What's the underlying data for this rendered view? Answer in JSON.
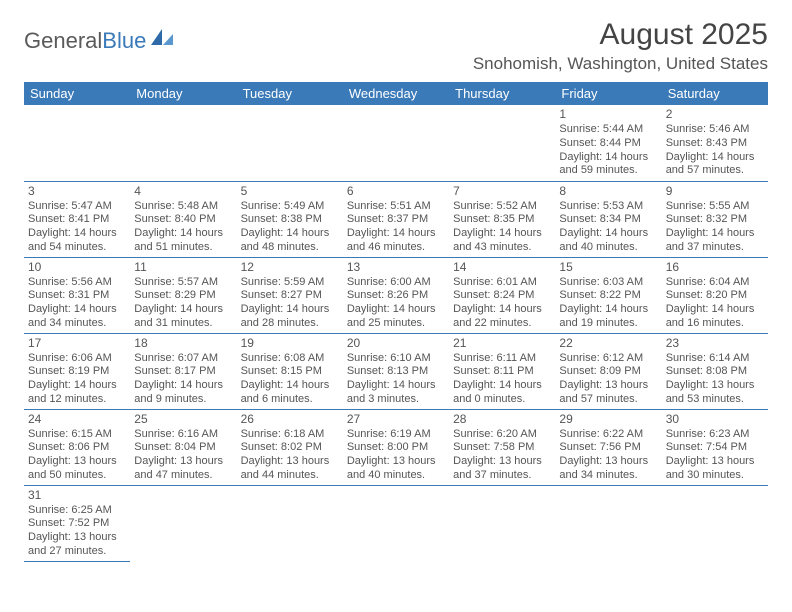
{
  "logo": {
    "word1": "General",
    "word2": "Blue"
  },
  "colors": {
    "brand": "#3a7ab8",
    "text": "#555555",
    "bg": "#ffffff"
  },
  "title": "August 2025",
  "location": "Snohomish, Washington, United States",
  "weekdays": [
    "Sunday",
    "Monday",
    "Tuesday",
    "Wednesday",
    "Thursday",
    "Friday",
    "Saturday"
  ],
  "typography": {
    "title_fontsize": 30,
    "location_fontsize": 17,
    "header_fontsize": 13,
    "cell_fontsize": 11
  },
  "layout": {
    "first_day_index": 5,
    "rows": 6,
    "cols": 7
  },
  "days": [
    {
      "n": "1",
      "sr": "Sunrise: 5:44 AM",
      "ss": "Sunset: 8:44 PM",
      "d1": "Daylight: 14 hours",
      "d2": "and 59 minutes."
    },
    {
      "n": "2",
      "sr": "Sunrise: 5:46 AM",
      "ss": "Sunset: 8:43 PM",
      "d1": "Daylight: 14 hours",
      "d2": "and 57 minutes."
    },
    {
      "n": "3",
      "sr": "Sunrise: 5:47 AM",
      "ss": "Sunset: 8:41 PM",
      "d1": "Daylight: 14 hours",
      "d2": "and 54 minutes."
    },
    {
      "n": "4",
      "sr": "Sunrise: 5:48 AM",
      "ss": "Sunset: 8:40 PM",
      "d1": "Daylight: 14 hours",
      "d2": "and 51 minutes."
    },
    {
      "n": "5",
      "sr": "Sunrise: 5:49 AM",
      "ss": "Sunset: 8:38 PM",
      "d1": "Daylight: 14 hours",
      "d2": "and 48 minutes."
    },
    {
      "n": "6",
      "sr": "Sunrise: 5:51 AM",
      "ss": "Sunset: 8:37 PM",
      "d1": "Daylight: 14 hours",
      "d2": "and 46 minutes."
    },
    {
      "n": "7",
      "sr": "Sunrise: 5:52 AM",
      "ss": "Sunset: 8:35 PM",
      "d1": "Daylight: 14 hours",
      "d2": "and 43 minutes."
    },
    {
      "n": "8",
      "sr": "Sunrise: 5:53 AM",
      "ss": "Sunset: 8:34 PM",
      "d1": "Daylight: 14 hours",
      "d2": "and 40 minutes."
    },
    {
      "n": "9",
      "sr": "Sunrise: 5:55 AM",
      "ss": "Sunset: 8:32 PM",
      "d1": "Daylight: 14 hours",
      "d2": "and 37 minutes."
    },
    {
      "n": "10",
      "sr": "Sunrise: 5:56 AM",
      "ss": "Sunset: 8:31 PM",
      "d1": "Daylight: 14 hours",
      "d2": "and 34 minutes."
    },
    {
      "n": "11",
      "sr": "Sunrise: 5:57 AM",
      "ss": "Sunset: 8:29 PM",
      "d1": "Daylight: 14 hours",
      "d2": "and 31 minutes."
    },
    {
      "n": "12",
      "sr": "Sunrise: 5:59 AM",
      "ss": "Sunset: 8:27 PM",
      "d1": "Daylight: 14 hours",
      "d2": "and 28 minutes."
    },
    {
      "n": "13",
      "sr": "Sunrise: 6:00 AM",
      "ss": "Sunset: 8:26 PM",
      "d1": "Daylight: 14 hours",
      "d2": "and 25 minutes."
    },
    {
      "n": "14",
      "sr": "Sunrise: 6:01 AM",
      "ss": "Sunset: 8:24 PM",
      "d1": "Daylight: 14 hours",
      "d2": "and 22 minutes."
    },
    {
      "n": "15",
      "sr": "Sunrise: 6:03 AM",
      "ss": "Sunset: 8:22 PM",
      "d1": "Daylight: 14 hours",
      "d2": "and 19 minutes."
    },
    {
      "n": "16",
      "sr": "Sunrise: 6:04 AM",
      "ss": "Sunset: 8:20 PM",
      "d1": "Daylight: 14 hours",
      "d2": "and 16 minutes."
    },
    {
      "n": "17",
      "sr": "Sunrise: 6:06 AM",
      "ss": "Sunset: 8:19 PM",
      "d1": "Daylight: 14 hours",
      "d2": "and 12 minutes."
    },
    {
      "n": "18",
      "sr": "Sunrise: 6:07 AM",
      "ss": "Sunset: 8:17 PM",
      "d1": "Daylight: 14 hours",
      "d2": "and 9 minutes."
    },
    {
      "n": "19",
      "sr": "Sunrise: 6:08 AM",
      "ss": "Sunset: 8:15 PM",
      "d1": "Daylight: 14 hours",
      "d2": "and 6 minutes."
    },
    {
      "n": "20",
      "sr": "Sunrise: 6:10 AM",
      "ss": "Sunset: 8:13 PM",
      "d1": "Daylight: 14 hours",
      "d2": "and 3 minutes."
    },
    {
      "n": "21",
      "sr": "Sunrise: 6:11 AM",
      "ss": "Sunset: 8:11 PM",
      "d1": "Daylight: 14 hours",
      "d2": "and 0 minutes."
    },
    {
      "n": "22",
      "sr": "Sunrise: 6:12 AM",
      "ss": "Sunset: 8:09 PM",
      "d1": "Daylight: 13 hours",
      "d2": "and 57 minutes."
    },
    {
      "n": "23",
      "sr": "Sunrise: 6:14 AM",
      "ss": "Sunset: 8:08 PM",
      "d1": "Daylight: 13 hours",
      "d2": "and 53 minutes."
    },
    {
      "n": "24",
      "sr": "Sunrise: 6:15 AM",
      "ss": "Sunset: 8:06 PM",
      "d1": "Daylight: 13 hours",
      "d2": "and 50 minutes."
    },
    {
      "n": "25",
      "sr": "Sunrise: 6:16 AM",
      "ss": "Sunset: 8:04 PM",
      "d1": "Daylight: 13 hours",
      "d2": "and 47 minutes."
    },
    {
      "n": "26",
      "sr": "Sunrise: 6:18 AM",
      "ss": "Sunset: 8:02 PM",
      "d1": "Daylight: 13 hours",
      "d2": "and 44 minutes."
    },
    {
      "n": "27",
      "sr": "Sunrise: 6:19 AM",
      "ss": "Sunset: 8:00 PM",
      "d1": "Daylight: 13 hours",
      "d2": "and 40 minutes."
    },
    {
      "n": "28",
      "sr": "Sunrise: 6:20 AM",
      "ss": "Sunset: 7:58 PM",
      "d1": "Daylight: 13 hours",
      "d2": "and 37 minutes."
    },
    {
      "n": "29",
      "sr": "Sunrise: 6:22 AM",
      "ss": "Sunset: 7:56 PM",
      "d1": "Daylight: 13 hours",
      "d2": "and 34 minutes."
    },
    {
      "n": "30",
      "sr": "Sunrise: 6:23 AM",
      "ss": "Sunset: 7:54 PM",
      "d1": "Daylight: 13 hours",
      "d2": "and 30 minutes."
    },
    {
      "n": "31",
      "sr": "Sunrise: 6:25 AM",
      "ss": "Sunset: 7:52 PM",
      "d1": "Daylight: 13 hours",
      "d2": "and 27 minutes."
    }
  ]
}
